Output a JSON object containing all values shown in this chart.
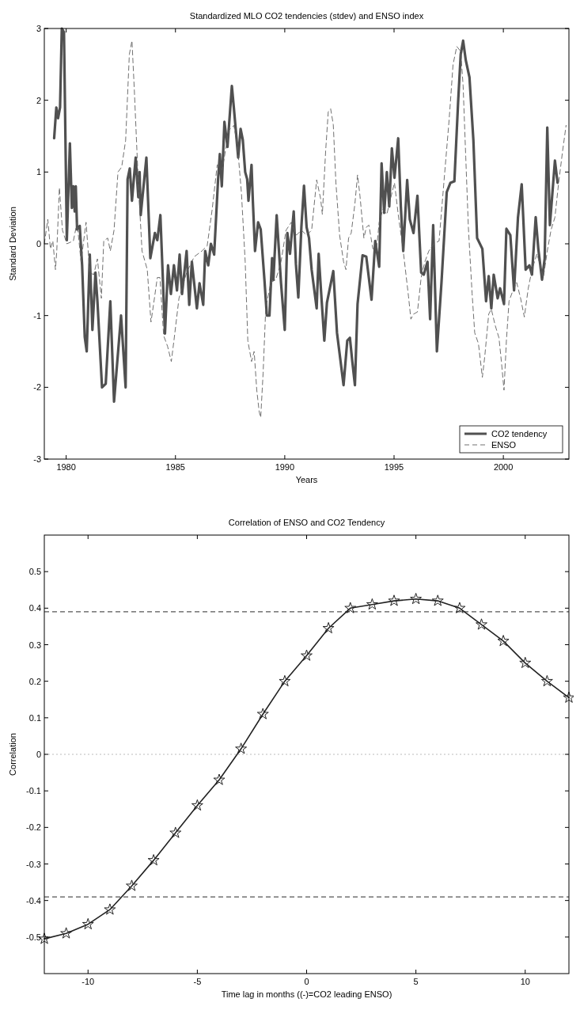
{
  "chart_data": [
    {
      "type": "line",
      "title": "Standardized MLO CO2 tendencies (stdev) and ENSO index",
      "xlabel": "Years",
      "ylabel": "Standard Deviation",
      "xlim": [
        1979,
        2003
      ],
      "xticks": [
        1980,
        1985,
        1990,
        1995,
        2000
      ],
      "ylim": [
        -3,
        3
      ],
      "yticks": [
        -3,
        -2,
        -1,
        0,
        1,
        2,
        3
      ],
      "legend": "bottom right",
      "series": [
        {
          "name": "CO2 tendency",
          "color": "#505050",
          "line_style": "solid",
          "x": [
            1979.45,
            1979.55,
            1979.63,
            1979.72,
            1979.8,
            1979.9,
            1980.03,
            1980.17,
            1980.26,
            1980.33,
            1980.39,
            1980.44,
            1980.5,
            1980.62,
            1980.73,
            1980.85,
            1980.94,
            1981.08,
            1981.2,
            1981.34,
            1981.43,
            1981.64,
            1981.81,
            1982.02,
            1982.19,
            1982.51,
            1982.72,
            1982.81,
            1982.91,
            1983.01,
            1983.18,
            1983.3,
            1983.36,
            1983.41,
            1983.67,
            1983.85,
            1984.06,
            1984.17,
            1984.31,
            1984.52,
            1984.66,
            1984.79,
            1984.93,
            1985.07,
            1985.19,
            1985.3,
            1985.51,
            1985.63,
            1985.75,
            1985.98,
            1986.1,
            1986.27,
            1986.36,
            1986.5,
            1986.62,
            1986.77,
            1986.95,
            1987.03,
            1987.12,
            1987.24,
            1987.38,
            1987.58,
            1987.67,
            1987.87,
            1987.98,
            1988.08,
            1988.19,
            1988.28,
            1988.34,
            1988.48,
            1988.54,
            1988.64,
            1988.78,
            1988.9,
            1989.07,
            1989.18,
            1989.3,
            1989.42,
            1989.48,
            1989.63,
            1989.83,
            1990.0,
            1990.12,
            1990.24,
            1990.41,
            1990.51,
            1990.62,
            1990.76,
            1990.88,
            1991.0,
            1991.11,
            1991.23,
            1991.46,
            1991.55,
            1991.69,
            1991.81,
            1991.93,
            1992.22,
            1992.39,
            1992.69,
            1992.86,
            1992.98,
            1993.09,
            1993.21,
            1993.33,
            1993.56,
            1993.73,
            1993.97,
            1994.14,
            1994.32,
            1994.43,
            1994.55,
            1994.67,
            1994.78,
            1994.9,
            1995.02,
            1995.19,
            1995.31,
            1995.42,
            1995.6,
            1995.72,
            1995.89,
            1996.07,
            1996.24,
            1996.36,
            1996.53,
            1996.65,
            1996.79,
            1996.96,
            1997.17,
            1997.41,
            1997.58,
            1997.76,
            1997.93,
            1998.05,
            1998.16,
            1998.28,
            1998.45,
            1998.63,
            1998.8,
            1999.04,
            1999.21,
            1999.33,
            1999.45,
            1999.56,
            1999.74,
            1999.85,
            2000.03,
            2000.14,
            2000.32,
            2000.49,
            2000.67,
            2000.84,
            2001.02,
            2001.19,
            2001.31,
            2001.48,
            2001.6,
            2001.77,
            2001.89,
            2002.01,
            2002.13,
            2002.36,
            2002.48
          ],
          "values": [
            1.47,
            1.9,
            1.75,
            1.9,
            3.0,
            2.95,
            0.05,
            1.4,
            0.5,
            0.8,
            0.45,
            0.8,
            0.2,
            0.25,
            -0.3,
            -1.3,
            -1.5,
            -0.15,
            -1.2,
            -0.4,
            -0.8,
            -2.0,
            -1.95,
            -0.8,
            -2.2,
            -1.0,
            -2.0,
            0.9,
            1.05,
            0.6,
            1.2,
            0.65,
            1.0,
            0.4,
            1.2,
            -0.2,
            0.15,
            0.05,
            0.4,
            -1.25,
            -0.3,
            -0.7,
            -0.3,
            -0.65,
            -0.15,
            -0.7,
            -0.1,
            -0.85,
            -0.25,
            -0.9,
            -0.55,
            -0.85,
            -0.1,
            -0.3,
            0.0,
            -0.15,
            0.9,
            1.25,
            0.8,
            1.7,
            1.35,
            2.2,
            1.9,
            1.2,
            1.6,
            1.45,
            1.0,
            0.9,
            0.6,
            1.1,
            0.6,
            -0.1,
            0.3,
            0.2,
            -0.5,
            -1.0,
            -1.0,
            -0.2,
            -0.5,
            0.4,
            -0.55,
            -1.2,
            0.15,
            -0.14,
            0.45,
            -0.28,
            -0.75,
            0.23,
            0.81,
            0.23,
            0.08,
            -0.36,
            -0.9,
            -0.14,
            -0.8,
            -1.35,
            -0.82,
            -0.38,
            -1.24,
            -1.97,
            -1.35,
            -1.31,
            -1.64,
            -1.97,
            -0.84,
            -0.16,
            -0.18,
            -0.78,
            0.04,
            -0.32,
            1.12,
            0.43,
            1.0,
            0.52,
            1.33,
            0.92,
            1.47,
            0.52,
            -0.1,
            0.89,
            0.34,
            0.15,
            0.67,
            -0.4,
            -0.43,
            -0.25,
            -1.05,
            0.26,
            -1.5,
            -0.54,
            0.72,
            0.85,
            0.87,
            1.97,
            2.64,
            2.83,
            2.56,
            2.32,
            1.44,
            0.08,
            -0.07,
            -0.8,
            -0.45,
            -0.9,
            -0.43,
            -0.76,
            -0.62,
            -0.84,
            0.21,
            0.12,
            -0.65,
            0.37,
            0.83,
            -0.36,
            -0.3,
            -0.43,
            0.37,
            -0.07,
            -0.5,
            -0.21,
            1.62,
            0.26,
            1.16,
            0.85
          ]
        },
        {
          "name": "ENSO",
          "color": "#606060",
          "line_style": "dashed",
          "x": [
            1979.0,
            1979.16,
            1979.28,
            1979.39,
            1979.51,
            1979.57,
            1979.69,
            1979.83,
            1980.03,
            1980.33,
            1980.5,
            1980.68,
            1980.91,
            1981.08,
            1981.26,
            1981.43,
            1981.61,
            1981.72,
            1981.9,
            1982.02,
            1982.19,
            1982.37,
            1982.54,
            1982.72,
            1982.89,
            1983.01,
            1983.12,
            1983.3,
            1983.47,
            1983.71,
            1983.88,
            1984.0,
            1984.17,
            1984.29,
            1984.46,
            1984.64,
            1984.81,
            1984.93,
            1985.16,
            1985.51,
            1985.86,
            1986.21,
            1986.45,
            1986.68,
            1986.91,
            1987.14,
            1987.44,
            1987.67,
            1987.84,
            1988.02,
            1988.19,
            1988.31,
            1988.48,
            1988.6,
            1988.72,
            1988.83,
            1988.9,
            1989.01,
            1989.13,
            1989.36,
            1989.59,
            1989.83,
            1990.06,
            1990.3,
            1990.53,
            1990.76,
            1991.0,
            1991.23,
            1991.46,
            1991.64,
            1991.72,
            1991.87,
            1991.99,
            1992.1,
            1992.22,
            1992.34,
            1992.51,
            1992.69,
            1992.8,
            1992.92,
            1993.04,
            1993.21,
            1993.33,
            1993.44,
            1993.62,
            1993.73,
            1993.85,
            1994.03,
            1994.2,
            1994.32,
            1994.49,
            1994.67,
            1994.84,
            1995.02,
            1995.19,
            1995.42,
            1995.66,
            1995.77,
            1995.89,
            1996.07,
            1996.24,
            1996.41,
            1996.59,
            1996.82,
            1997.06,
            1997.29,
            1997.52,
            1997.7,
            1997.87,
            1998.05,
            1998.16,
            1998.28,
            1998.4,
            1998.57,
            1998.69,
            1998.86,
            1999.04,
            1999.15,
            1999.33,
            1999.45,
            1999.62,
            1999.8,
            1999.91,
            2000.03,
            2000.14,
            2000.26,
            2000.44,
            2000.61,
            2000.79,
            2000.96,
            2001.14,
            2001.31,
            2001.54,
            2001.83,
            2002.01,
            2002.18,
            2002.36,
            2002.53,
            2002.71,
            2002.87
          ],
          "values": [
            0.0,
            0.34,
            -0.07,
            0.04,
            -0.36,
            -0.1,
            0.78,
            0.19,
            0.0,
            0.04,
            0.3,
            -0.25,
            0.3,
            -0.4,
            -0.43,
            -0.21,
            -0.76,
            0.04,
            0.08,
            -0.1,
            0.19,
            1.0,
            1.07,
            1.44,
            2.64,
            2.83,
            2.13,
            0.85,
            -0.1,
            -0.36,
            -1.09,
            -0.84,
            -0.47,
            -0.47,
            -1.28,
            -1.43,
            -1.64,
            -1.35,
            -0.76,
            -0.4,
            -0.18,
            -0.1,
            -0.03,
            0.48,
            1.1,
            1.03,
            1.58,
            1.65,
            1.36,
            0.7,
            -0.25,
            -1.35,
            -1.64,
            -1.5,
            -2.04,
            -2.34,
            -2.42,
            -1.8,
            -0.9,
            -0.54,
            -0.5,
            -0.25,
            0.19,
            0.3,
            0.12,
            0.19,
            0.12,
            0.19,
            0.89,
            0.63,
            0.41,
            1.29,
            1.84,
            1.88,
            1.66,
            0.85,
            0.12,
            -0.25,
            -0.36,
            0.08,
            0.15,
            0.56,
            0.96,
            0.67,
            0.08,
            0.23,
            0.26,
            -0.07,
            -0.07,
            0.3,
            0.48,
            0.41,
            0.63,
            0.85,
            0.41,
            -0.1,
            -0.73,
            -1.05,
            -0.98,
            -0.95,
            -0.47,
            -0.25,
            -0.1,
            0.0,
            0.04,
            0.89,
            1.73,
            2.5,
            2.75,
            2.68,
            2.2,
            1.21,
            0.23,
            -0.69,
            -1.24,
            -1.39,
            -1.86,
            -1.57,
            -0.98,
            -0.91,
            -1.13,
            -1.31,
            -1.64,
            -2.04,
            -1.35,
            -0.8,
            -0.65,
            -0.54,
            -0.76,
            -1.02,
            -0.62,
            -0.36,
            -0.14,
            -0.47,
            -0.1,
            0.19,
            0.37,
            0.85,
            1.29,
            1.65
          ]
        }
      ]
    },
    {
      "type": "line",
      "title": "Correlation of ENSO and CO2 Tendency",
      "xlabel": "Time lag in months ((-)=CO2 leading ENSO)",
      "ylabel": "Correlation",
      "xlim": [
        -12,
        12
      ],
      "xticks": [
        -10,
        -5,
        0,
        5,
        10
      ],
      "ylim": [
        -0.6,
        0.6
      ],
      "yticks": [
        -0.5,
        -0.4,
        -0.3,
        -0.2,
        -0.1,
        0,
        0.1,
        0.2,
        0.3,
        0.4,
        0.5
      ],
      "marker": "star",
      "ref_lines": [
        {
          "axis": "y",
          "value": 0.39,
          "color": "#555555",
          "line_style": "dashed"
        },
        {
          "axis": "y",
          "value": -0.39,
          "color": "#555555",
          "line_style": "dashed"
        },
        {
          "axis": "y",
          "value": 0,
          "color": "#bbbbbb",
          "line_style": "dotted"
        }
      ],
      "series": [
        {
          "color": "#222222",
          "x": [
            -12,
            -11,
            -10,
            -9,
            -8,
            -7,
            -6,
            -5,
            -4,
            -3,
            -2,
            -1,
            0,
            1,
            2,
            3,
            4,
            5,
            6,
            7,
            8,
            9,
            10,
            11,
            12
          ],
          "values": [
            -0.505,
            -0.49,
            -0.465,
            -0.425,
            -0.36,
            -0.29,
            -0.215,
            -0.14,
            -0.07,
            0.015,
            0.11,
            0.2,
            0.27,
            0.345,
            0.4,
            0.41,
            0.42,
            0.425,
            0.42,
            0.4,
            0.355,
            0.31,
            0.25,
            0.2,
            0.155
          ]
        }
      ]
    }
  ]
}
